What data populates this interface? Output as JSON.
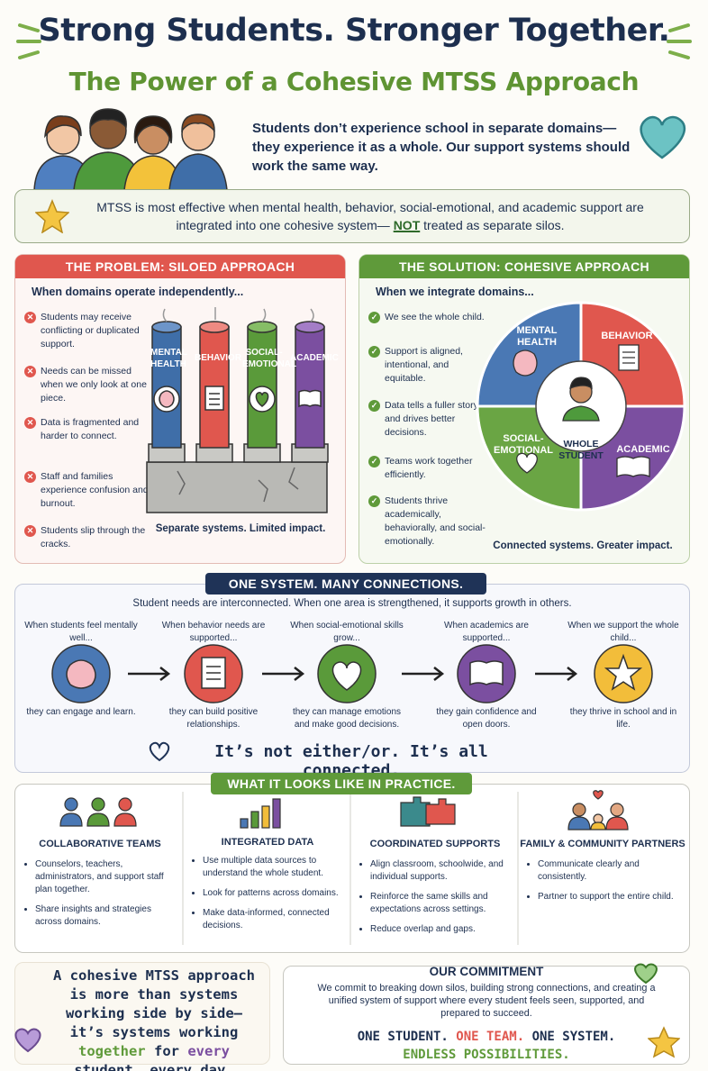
{
  "header": {
    "title": "Strong Students. Stronger Together.",
    "subtitle": "The Power of a Cohesive MTSS Approach",
    "intro": "Students don’t experience school in separate domains— they experience it as a whole. Our support systems should work the same way."
  },
  "key_message": {
    "before": "MTSS is most effective when mental health, behavior, social-emotional, and academic support are integrated into one cohesive system—",
    "emphasis": "NOT",
    "after": "treated as separate silos."
  },
  "problem": {
    "title": "THE PROBLEM: SILOED APPROACH",
    "lead": "When domains operate independently...",
    "points": [
      "Students may receive conflicting or duplicated support.",
      "Needs can be missed when we only look at one piece.",
      "Data is fragmented and harder to connect.",
      "Staff and families experience confusion and burnout.",
      "Students slip through the cracks."
    ],
    "silos": [
      "MENTAL HEALTH",
      "BEHAVIOR",
      "SOCIAL-EMOTIONAL",
      "ACADEMIC"
    ],
    "caption": "Separate systems. Limited impact."
  },
  "solution": {
    "title": "THE SOLUTION: COHESIVE APPROACH",
    "lead": "When we integrate domains...",
    "points": [
      "We see the whole child.",
      "Support is aligned, intentional, and equitable.",
      "Data tells a fuller story and drives better decisions.",
      "Teams work together efficiently.",
      "Students thrive academically, behaviorally, and social-emotionally."
    ],
    "domains": [
      "MENTAL HEALTH",
      "BEHAVIOR",
      "SOCIAL-EMOTIONAL",
      "ACADEMIC"
    ],
    "center": "WHOLE STUDENT",
    "caption": "Connected systems. Greater impact."
  },
  "connections": {
    "title": "ONE SYSTEM. MANY CONNECTIONS.",
    "lead": "Student needs are interconnected. When one area is strengthened, it supports growth in others.",
    "steps": [
      {
        "when": "When students feel mentally well...",
        "result": "they can engage and learn."
      },
      {
        "when": "When behavior needs are supported...",
        "result": "they can build positive relationships."
      },
      {
        "when": "When social-emotional skills grow...",
        "result": "they can manage emotions and make good decisions."
      },
      {
        "when": "When academics are supported...",
        "result": "they gain confidence and open doors."
      },
      {
        "when": "When we support the whole child...",
        "result": "they thrive in school and in life."
      }
    ],
    "tagline": "It’s not either/or. It’s all connected."
  },
  "practice": {
    "title": "WHAT IT LOOKS LIKE IN PRACTICE.",
    "columns": [
      {
        "heading": "COLLABORATIVE TEAMS",
        "items": [
          "Counselors, teachers, administrators, and support staff plan together.",
          "Share insights and strategies across domains."
        ]
      },
      {
        "heading": "INTEGRATED DATA",
        "items": [
          "Use multiple data sources to understand the whole student.",
          "Look for patterns across domains.",
          "Make data-informed, connected decisions."
        ]
      },
      {
        "heading": "COORDINATED SUPPORTS",
        "items": [
          "Align classroom, schoolwide, and individual supports.",
          "Reinforce the same skills and expectations across settings.",
          "Reduce overlap and gaps."
        ]
      },
      {
        "heading": "FAMILY & COMMUNITY PARTNERS",
        "items": [
          "Communicate clearly and consistently.",
          "Partner to support the entire child."
        ]
      }
    ]
  },
  "closing": {
    "parts": [
      "A cohesive MTSS approach is more than systems working side by side— it’s systems working",
      "together",
      "for",
      "every",
      "student, every day."
    ]
  },
  "commitment": {
    "title": "OUR COMMITMENT",
    "body": "We commit to breaking down silos, building strong connections, and creating a unified system of support where every student feels seen, supported, and prepared to succeed.",
    "line1": [
      "ONE STUDENT.",
      "ONE TEAM.",
      "ONE SYSTEM."
    ],
    "line2": "ENDLESS POSSIBILITIES."
  }
}
